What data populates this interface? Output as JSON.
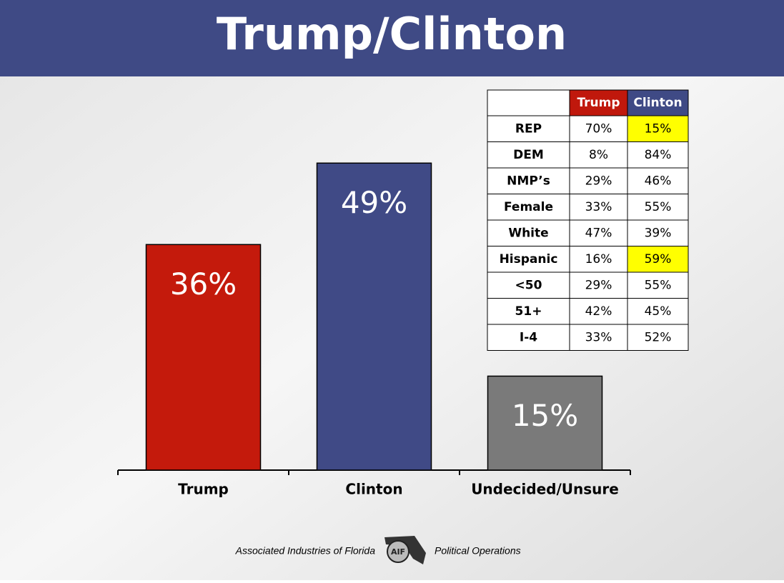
{
  "chart_data": {
    "type": "bar",
    "title": "Trump/Clinton",
    "categories": [
      "Trump",
      "Clinton",
      "Undecided/Unsure"
    ],
    "values": [
      36,
      49,
      15
    ],
    "value_labels": [
      "36%",
      "49%",
      "15%"
    ],
    "colors": [
      "#c41a0c",
      "#404a86",
      "#7a7a7a"
    ]
  },
  "table": {
    "columns": [
      "Trump",
      "Clinton"
    ],
    "column_colors": [
      "#c0180c",
      "#3f4a85"
    ],
    "rows": [
      {
        "label": "REP",
        "values": [
          "70%",
          "15%"
        ]
      },
      {
        "label": "DEM",
        "values": [
          "8%",
          "84%"
        ]
      },
      {
        "label": "NMP’s",
        "values": [
          "29%",
          "46%"
        ]
      },
      {
        "label": "Female",
        "values": [
          "33%",
          "55%"
        ]
      },
      {
        "label": "White",
        "values": [
          "47%",
          "39%"
        ]
      },
      {
        "label": "Hispanic",
        "values": [
          "16%",
          "59%"
        ]
      },
      {
        "label": "<50",
        "values": [
          "29%",
          "55%"
        ]
      },
      {
        "label": "51+",
        "values": [
          "42%",
          "45%"
        ]
      },
      {
        "label": "I-4",
        "values": [
          "33%",
          "52%"
        ]
      }
    ],
    "highlight_color": "#ffff00",
    "highlight_cells": [
      [
        0,
        1
      ],
      [
        5,
        1
      ]
    ]
  },
  "footer": {
    "left": "Associated Industries of Florida",
    "logo": "AIF",
    "right": "Political Operations"
  }
}
